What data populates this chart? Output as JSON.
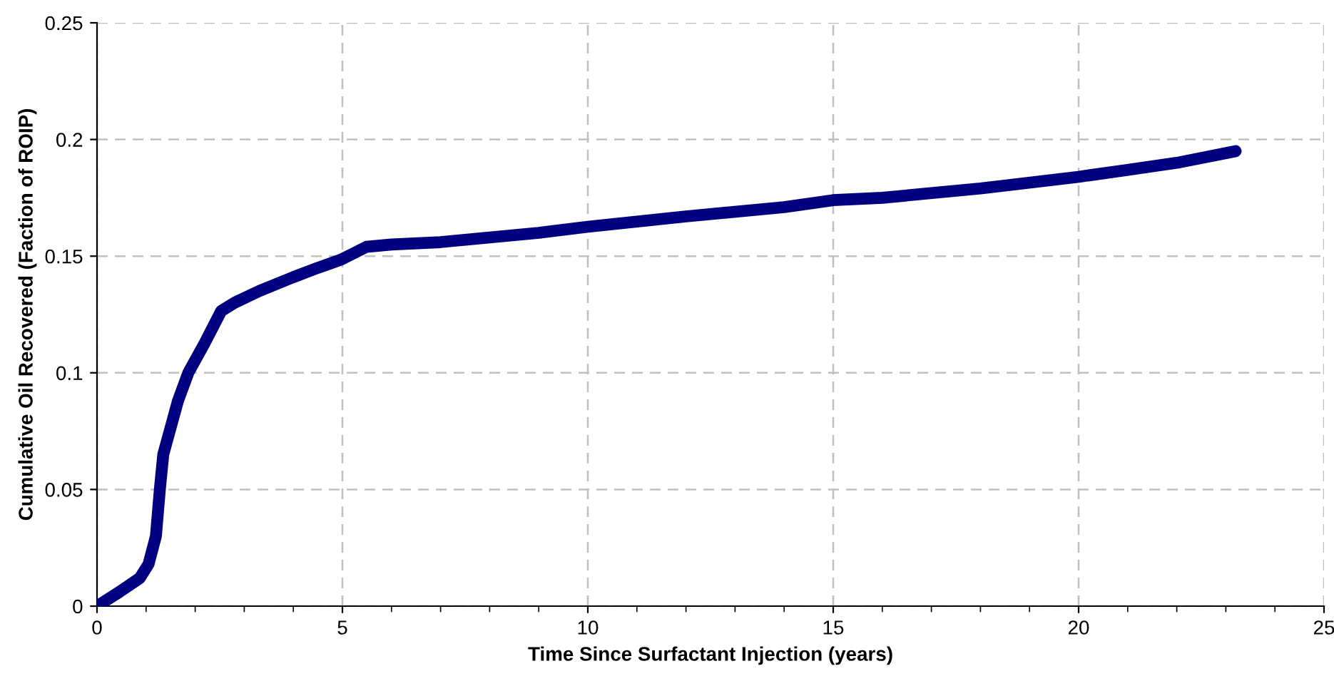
{
  "chart_data": {
    "type": "line",
    "xlabel": "Time Since Surfactant Injection (years)",
    "ylabel": "Cumulative Oil Recovered (Faction of ROIP)",
    "series": [
      {
        "color": "#000080",
        "x": [
          0,
          0.45,
          0.87,
          1.05,
          1.2,
          1.28,
          1.35,
          1.48,
          1.65,
          1.86,
          2.2,
          2.53,
          2.8,
          3.3,
          4,
          4.5,
          4.97,
          5.49,
          6,
          7,
          8,
          9,
          10,
          12,
          14,
          15,
          16,
          18,
          20,
          21,
          22,
          23.2
        ],
        "values": [
          0,
          0.006,
          0.012,
          0.018,
          0.03,
          0.05,
          0.065,
          0.075,
          0.088,
          0.1,
          0.113,
          0.1265,
          0.13,
          0.135,
          0.141,
          0.145,
          0.1485,
          0.154,
          0.155,
          0.156,
          0.158,
          0.16,
          0.1626,
          0.167,
          0.171,
          0.174,
          0.175,
          0.179,
          0.184,
          0.187,
          0.19,
          0.195
        ]
      }
    ],
    "xlim": [
      0,
      25
    ],
    "ylim": [
      0,
      0.25
    ],
    "xticks": [
      0,
      {
        "value": 1,
        "label": null
      },
      {
        "value": 2,
        "label": null
      },
      {
        "value": 3,
        "label": null
      },
      {
        "value": 4,
        "label": null
      },
      5,
      {
        "value": 6,
        "label": null
      },
      {
        "value": 7,
        "label": null
      },
      {
        "value": 8,
        "label": null
      },
      {
        "value": 9,
        "label": null
      },
      10,
      {
        "value": 11,
        "label": null
      },
      {
        "value": 12,
        "label": null
      },
      {
        "value": 13,
        "label": null
      },
      {
        "value": 14,
        "label": null
      },
      15,
      {
        "value": 16,
        "label": null
      },
      {
        "value": 17,
        "label": null
      },
      {
        "value": 18,
        "label": null
      },
      {
        "value": 19,
        "label": null
      },
      20,
      {
        "value": 21,
        "label": null
      },
      {
        "value": 22,
        "label": null
      },
      {
        "value": 23,
        "label": null
      },
      {
        "value": 24,
        "label": null
      },
      25
    ],
    "yticks": [
      0,
      0.05,
      0.1,
      0.15,
      0.2,
      0.25
    ],
    "grid": true,
    "marker": "none",
    "line_style": "solid"
  }
}
